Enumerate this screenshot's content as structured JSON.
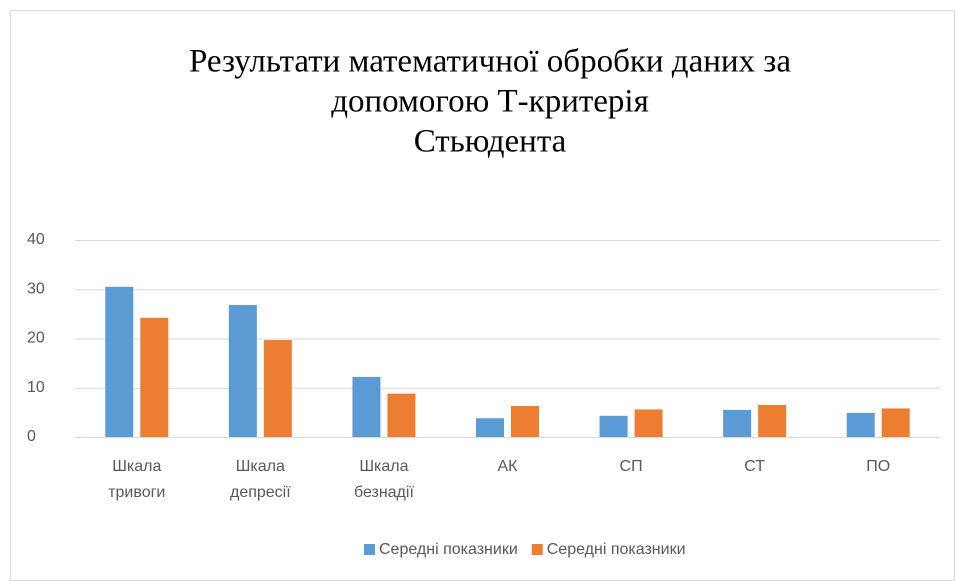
{
  "chart_data": {
    "type": "bar",
    "title": [
      "Результати математичної обробки даних за",
      "допомогою Т-критерія",
      "Стьюдента"
    ],
    "categories": [
      "Шкала тривоги",
      "Шкала депресії",
      "Шкала безнадії",
      "АК",
      "СП",
      "СТ",
      "ПО"
    ],
    "series": [
      {
        "name": "Середні показники",
        "color": "#5b9bd5",
        "values": [
          30.5,
          26.8,
          12.2,
          3.8,
          4.3,
          5.5,
          4.9
        ]
      },
      {
        "name": "Середні показники",
        "color": "#ed7d31",
        "values": [
          24.2,
          19.7,
          8.8,
          6.3,
          5.6,
          6.5,
          5.8
        ]
      }
    ],
    "ylim": [
      0,
      40
    ],
    "yticks": [
      0,
      10,
      20,
      30,
      40
    ],
    "grid": true,
    "legend": "bottom"
  }
}
